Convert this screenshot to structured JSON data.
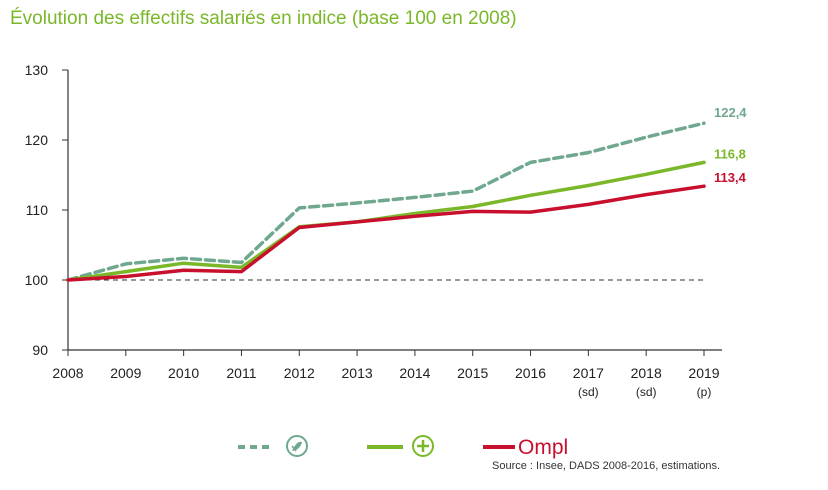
{
  "chart_data": {
    "type": "line",
    "title": "Évolution des effectifs salariés en indice (base 100 en 2008)",
    "xlabel": "",
    "ylabel": "",
    "categories": [
      "2008",
      "2009",
      "2010",
      "2011",
      "2012",
      "2013",
      "2014",
      "2015",
      "2016",
      "2017",
      "2018",
      "2019"
    ],
    "category_notes": [
      "",
      "",
      "",
      "",
      "",
      "",
      "",
      "",
      "",
      "(sd)",
      "(sd)",
      "(p)"
    ],
    "yticks": [
      "130",
      "120",
      "110",
      "100",
      "90"
    ],
    "ytick_values": [
      130,
      120,
      110,
      100,
      90
    ],
    "ylim": [
      90,
      130
    ],
    "reference_line": 100,
    "grid": false,
    "series": [
      {
        "key": "s1",
        "values": [
          100,
          102.3,
          103.1,
          102.5,
          110.3,
          111.0,
          111.8,
          112.7,
          116.8,
          118.2,
          120.4,
          122.4
        ],
        "color": "#6fa88f",
        "dashed": true,
        "end_label": "122,4"
      },
      {
        "key": "s2",
        "values": [
          100,
          101.2,
          102.4,
          101.8,
          107.6,
          108.3,
          109.5,
          110.5,
          112.1,
          113.5,
          115.1,
          116.8
        ],
        "color": "#7ab829",
        "dashed": false,
        "end_label": "116,8"
      },
      {
        "key": "s3",
        "values": [
          100,
          100.5,
          101.4,
          101.2,
          107.5,
          108.3,
          109.1,
          109.8,
          109.7,
          110.8,
          112.2,
          113.4
        ],
        "color": "#c8102e",
        "dashed": false,
        "end_label": "113,4"
      }
    ],
    "legend_placement": "bottom-center"
  },
  "legend": {
    "items": [
      {
        "glyph_color": "#6fa88f",
        "glyph": "leaf-icon"
      },
      {
        "glyph_color": "#7ab829",
        "glyph": "plus-icon"
      },
      {
        "text": "Ompl",
        "color": "#c8102e"
      }
    ]
  },
  "source": "Source : Insee, DADS 2008-2016, estimations."
}
